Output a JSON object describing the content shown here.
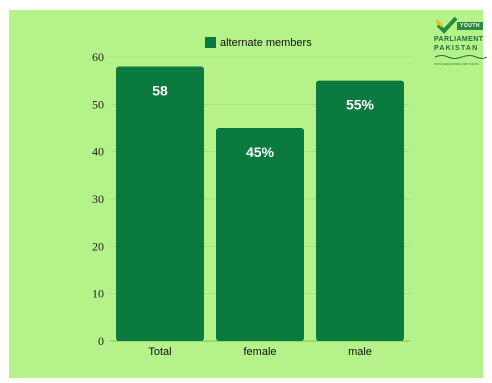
{
  "chart_data": {
    "type": "bar",
    "categories": [
      "Total",
      "female",
      "male"
    ],
    "series": [
      {
        "name": "alternate members",
        "values": [
          58,
          45,
          55
        ]
      }
    ],
    "data_labels": [
      "58",
      "45%",
      "55%"
    ],
    "ylim": [
      0,
      60
    ],
    "yticks": [
      0,
      10,
      20,
      30,
      40,
      50,
      60
    ],
    "xlabel": "",
    "ylabel": "",
    "grid": true,
    "legend_position": "top-center",
    "bar_color": "#0b7a3e",
    "background_color": "#b6f28a"
  },
  "logo": {
    "youth": "YOUTH",
    "parliament": "PARLIAMENT",
    "pakistan": "PAKISTAN",
    "tagline": "CIVIC EDUCATION FOR YOUTH"
  }
}
